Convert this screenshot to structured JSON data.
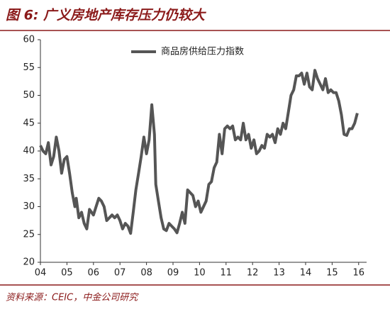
{
  "chart_data": {
    "type": "line",
    "title": "图 6:  广义房地产库存压力仍较大",
    "source": "资料来源：CEIC，中金公司研究",
    "xlim": [
      2004,
      2016.3
    ],
    "xticks": [
      {
        "value": 2004,
        "label": "04"
      },
      {
        "value": 2005,
        "label": "05"
      },
      {
        "value": 2006,
        "label": "06"
      },
      {
        "value": 2007,
        "label": "07"
      },
      {
        "value": 2008,
        "label": "08"
      },
      {
        "value": 2009,
        "label": "09"
      },
      {
        "value": 2010,
        "label": "10"
      },
      {
        "value": 2011,
        "label": "11"
      },
      {
        "value": 2012,
        "label": "12"
      },
      {
        "value": 2013,
        "label": "13"
      },
      {
        "value": 2014,
        "label": "14"
      },
      {
        "value": 2015,
        "label": "15"
      },
      {
        "value": 2016,
        "label": "16"
      }
    ],
    "ylim": [
      20,
      60
    ],
    "yticks": [
      20,
      25,
      30,
      35,
      40,
      45,
      50,
      55,
      60
    ],
    "legend": "upper-center",
    "x": [
      2004.0,
      2004.1,
      2004.2,
      2004.3,
      2004.4,
      2004.5,
      2004.6,
      2004.7,
      2004.8,
      2004.9,
      2005.0,
      2005.1,
      2005.2,
      2005.3,
      2005.35,
      2005.45,
      2005.55,
      2005.65,
      2005.75,
      2005.85,
      2006.0,
      2006.1,
      2006.2,
      2006.3,
      2006.4,
      2006.5,
      2006.6,
      2006.7,
      2006.8,
      2006.9,
      2007.0,
      2007.1,
      2007.2,
      2007.3,
      2007.4,
      2007.5,
      2007.6,
      2007.7,
      2007.8,
      2007.9,
      2008.0,
      2008.1,
      2008.2,
      2008.3,
      2008.35,
      2008.45,
      2008.55,
      2008.65,
      2008.75,
      2008.85,
      2008.95,
      2009.05,
      2009.15,
      2009.25,
      2009.35,
      2009.45,
      2009.55,
      2009.65,
      2009.75,
      2009.85,
      2009.95,
      2010.05,
      2010.15,
      2010.25,
      2010.35,
      2010.45,
      2010.55,
      2010.65,
      2010.75,
      2010.85,
      2010.95,
      2011.05,
      2011.15,
      2011.25,
      2011.35,
      2011.45,
      2011.55,
      2011.65,
      2011.75,
      2011.85,
      2011.95,
      2012.05,
      2012.15,
      2012.25,
      2012.35,
      2012.45,
      2012.55,
      2012.65,
      2012.75,
      2012.85,
      2012.95,
      2013.05,
      2013.15,
      2013.25,
      2013.35,
      2013.45,
      2013.55,
      2013.65,
      2013.75,
      2013.85,
      2013.95,
      2014.05,
      2014.15,
      2014.25,
      2014.35,
      2014.45,
      2014.55,
      2014.65,
      2014.75,
      2014.85,
      2014.95,
      2015.05,
      2015.15,
      2015.25,
      2015.35,
      2015.45,
      2015.55,
      2015.65,
      2015.75,
      2015.85,
      2015.95
    ],
    "series": [
      {
        "name": "商品房供给压力指数",
        "color": "#555555",
        "values": [
          41,
          40,
          39.5,
          41.5,
          37.5,
          39,
          42.5,
          40,
          36,
          38.5,
          39,
          36,
          32.5,
          30,
          31.5,
          28,
          29,
          27,
          26,
          29.5,
          28.5,
          30,
          31.5,
          31,
          30,
          27.5,
          28,
          28.5,
          28,
          28.5,
          27.5,
          26,
          27,
          26.5,
          25.2,
          29,
          33,
          36,
          39,
          42.5,
          39.5,
          42,
          48.3,
          43,
          34,
          31,
          28,
          26,
          25.7,
          27,
          26.5,
          26,
          25.3,
          27,
          29,
          27,
          33,
          32.5,
          32,
          30,
          31,
          29,
          30,
          31,
          34,
          34.5,
          37,
          38,
          43,
          39.5,
          44,
          44.5,
          44,
          44.5,
          42,
          42.5,
          42,
          45,
          42,
          43,
          40.5,
          42,
          39.5,
          40,
          41,
          40.5,
          43,
          42.5,
          43,
          41.5,
          44,
          43,
          45,
          44,
          47,
          50,
          51,
          53.5,
          53.5,
          54,
          52,
          54,
          51.5,
          51,
          54.5,
          53,
          52,
          51,
          53,
          50.5,
          51,
          50.5,
          50.5,
          49,
          46.5,
          43,
          42.8,
          44,
          44,
          45,
          46.8
        ]
      }
    ]
  }
}
